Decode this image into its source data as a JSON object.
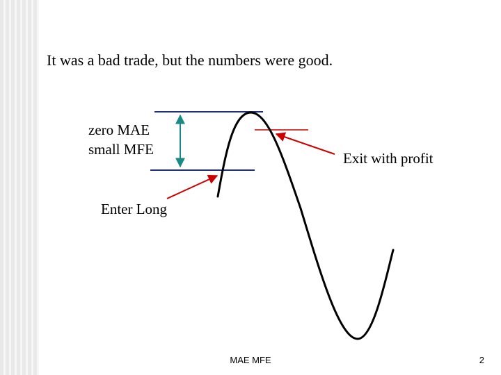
{
  "slide": {
    "headline": "It was a bad trade, but the numbers were good.",
    "footer_title": "MAE MFE",
    "page_number": "2"
  },
  "diagram": {
    "labels": {
      "mae_mfe_line1": "zero MAE",
      "mae_mfe_line2": "small MFE",
      "exit": "Exit with profit",
      "entry": "Enter Long"
    }
  },
  "colors": {
    "level_lines": "#1f2f7a",
    "range_arrow": "#1a8a86",
    "pointer_arrows": "#cc0000",
    "exit_level": "#cc0000",
    "price_curve": "#000000"
  }
}
